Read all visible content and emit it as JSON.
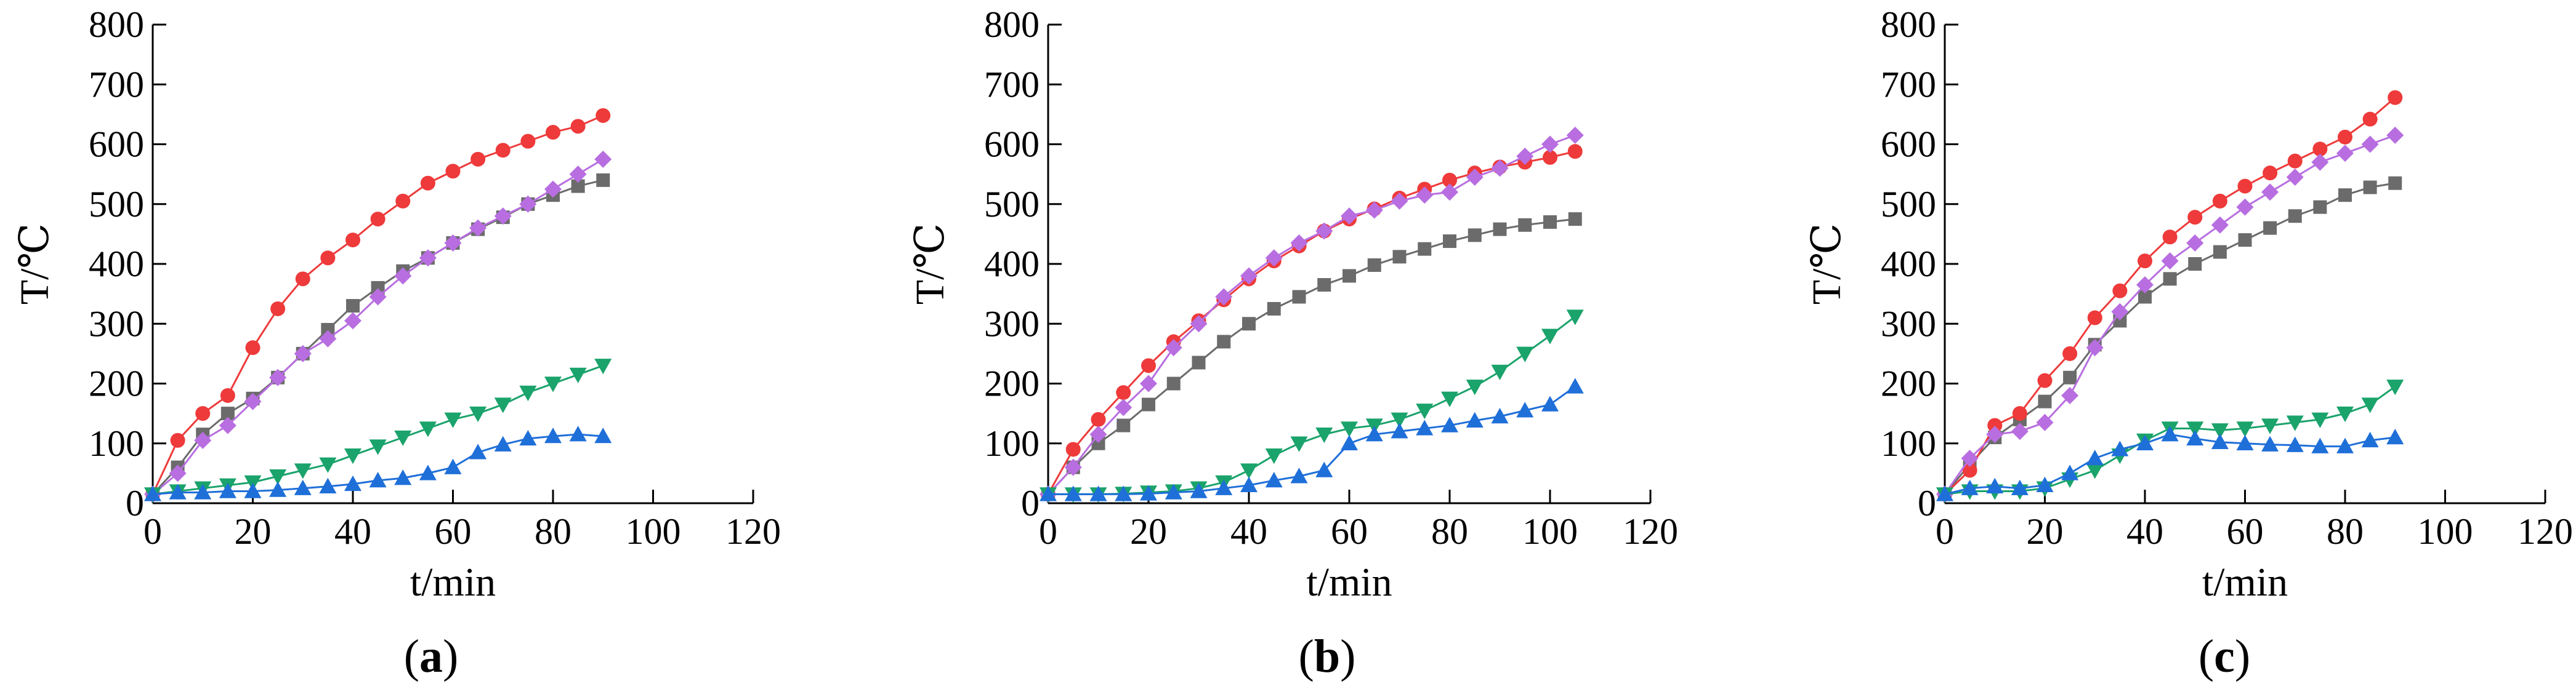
{
  "chart_data": [
    {
      "type": "line",
      "panel_label": "a",
      "xlabel": "t/min",
      "ylabel": "T/℃",
      "xlim": [
        0,
        120
      ],
      "ylim": [
        0,
        800
      ],
      "xticks": [
        "0",
        "20",
        "40",
        "60",
        "80",
        "100",
        "120"
      ],
      "yticks": [
        "0",
        "100",
        "200",
        "300",
        "400",
        "500",
        "600",
        "700",
        "800"
      ],
      "series": [
        {
          "marker": "square",
          "color": "#6b6b6b",
          "x": [
            0,
            5,
            10,
            15,
            20,
            25,
            30,
            35,
            40,
            45,
            50,
            55,
            60,
            65,
            70,
            75,
            80,
            85,
            90
          ],
          "y": [
            15,
            60,
            115,
            150,
            175,
            210,
            250,
            290,
            330,
            360,
            388,
            410,
            435,
            458,
            478,
            500,
            515,
            530,
            540
          ]
        },
        {
          "marker": "circle",
          "color": "#ee3a3a",
          "x": [
            0,
            5,
            10,
            15,
            20,
            25,
            30,
            35,
            40,
            45,
            50,
            55,
            60,
            65,
            70,
            75,
            80,
            85,
            90
          ],
          "y": [
            15,
            105,
            150,
            180,
            260,
            325,
            375,
            410,
            440,
            475,
            505,
            535,
            555,
            575,
            590,
            605,
            620,
            630,
            648
          ]
        },
        {
          "marker": "diamond",
          "color": "#b86ee0",
          "x": [
            0,
            5,
            10,
            15,
            20,
            25,
            30,
            35,
            40,
            45,
            50,
            55,
            60,
            65,
            70,
            75,
            80,
            85,
            90
          ],
          "y": [
            15,
            50,
            105,
            130,
            170,
            210,
            250,
            275,
            305,
            345,
            380,
            410,
            435,
            460,
            480,
            500,
            525,
            550,
            575
          ]
        },
        {
          "marker": "triangle-down",
          "color": "#1aa36b",
          "x": [
            0,
            5,
            10,
            15,
            20,
            25,
            30,
            35,
            40,
            45,
            50,
            55,
            60,
            65,
            70,
            75,
            80,
            85,
            90
          ],
          "y": [
            15,
            20,
            25,
            30,
            35,
            45,
            55,
            65,
            80,
            95,
            110,
            125,
            140,
            150,
            165,
            185,
            200,
            215,
            230
          ]
        },
        {
          "marker": "triangle-up",
          "color": "#1f6fd9",
          "x": [
            0,
            5,
            10,
            15,
            20,
            25,
            30,
            35,
            40,
            45,
            50,
            55,
            60,
            65,
            70,
            75,
            80,
            85,
            90
          ],
          "y": [
            15,
            18,
            18,
            20,
            20,
            22,
            25,
            28,
            32,
            38,
            42,
            50,
            60,
            85,
            98,
            108,
            112,
            115,
            112
          ]
        }
      ]
    },
    {
      "type": "line",
      "panel_label": "b",
      "xlabel": "t/min",
      "ylabel": "T/℃",
      "xlim": [
        0,
        120
      ],
      "ylim": [
        0,
        800
      ],
      "xticks": [
        "0",
        "20",
        "40",
        "60",
        "80",
        "100",
        "120"
      ],
      "yticks": [
        "0",
        "100",
        "200",
        "300",
        "400",
        "500",
        "600",
        "700",
        "800"
      ],
      "series": [
        {
          "marker": "square",
          "color": "#6b6b6b",
          "x": [
            0,
            5,
            10,
            15,
            20,
            25,
            30,
            35,
            40,
            45,
            50,
            55,
            60,
            65,
            70,
            75,
            80,
            85,
            90,
            95,
            100,
            105
          ],
          "y": [
            15,
            60,
            100,
            130,
            165,
            200,
            235,
            270,
            300,
            325,
            345,
            365,
            380,
            398,
            412,
            425,
            438,
            448,
            458,
            465,
            470,
            475
          ]
        },
        {
          "marker": "circle",
          "color": "#ee3a3a",
          "x": [
            0,
            5,
            10,
            15,
            20,
            25,
            30,
            35,
            40,
            45,
            50,
            55,
            60,
            65,
            70,
            75,
            80,
            85,
            90,
            95,
            100,
            105
          ],
          "y": [
            15,
            90,
            140,
            185,
            230,
            270,
            305,
            340,
            375,
            405,
            430,
            455,
            475,
            492,
            510,
            525,
            540,
            552,
            562,
            570,
            578,
            588
          ]
        },
        {
          "marker": "diamond",
          "color": "#b86ee0",
          "x": [
            0,
            5,
            10,
            15,
            20,
            25,
            30,
            35,
            40,
            45,
            50,
            55,
            60,
            65,
            70,
            75,
            80,
            85,
            90,
            95,
            100,
            105
          ],
          "y": [
            15,
            60,
            115,
            160,
            200,
            260,
            300,
            345,
            380,
            410,
            435,
            455,
            480,
            490,
            505,
            515,
            520,
            545,
            560,
            580,
            600,
            615
          ]
        },
        {
          "marker": "triangle-down",
          "color": "#1aa36b",
          "x": [
            0,
            5,
            10,
            15,
            20,
            25,
            30,
            35,
            40,
            45,
            50,
            55,
            60,
            65,
            70,
            75,
            80,
            85,
            90,
            95,
            100,
            105
          ],
          "y": [
            15,
            15,
            15,
            16,
            18,
            20,
            25,
            35,
            55,
            80,
            100,
            115,
            125,
            130,
            140,
            155,
            175,
            195,
            220,
            250,
            280,
            312
          ]
        },
        {
          "marker": "triangle-up",
          "color": "#1f6fd9",
          "x": [
            0,
            5,
            10,
            15,
            20,
            25,
            30,
            35,
            40,
            45,
            50,
            55,
            60,
            65,
            70,
            75,
            80,
            85,
            90,
            95,
            100,
            105
          ],
          "y": [
            15,
            15,
            15,
            15,
            16,
            18,
            20,
            25,
            30,
            38,
            45,
            55,
            100,
            115,
            120,
            125,
            130,
            138,
            145,
            155,
            165,
            195
          ]
        }
      ]
    },
    {
      "type": "line",
      "panel_label": "c",
      "xlabel": "t/min",
      "ylabel": "T/℃",
      "xlim": [
        0,
        120
      ],
      "ylim": [
        0,
        800
      ],
      "xticks": [
        "0",
        "20",
        "40",
        "60",
        "80",
        "100",
        "120"
      ],
      "yticks": [
        "0",
        "100",
        "200",
        "300",
        "400",
        "500",
        "600",
        "700",
        "800"
      ],
      "series": [
        {
          "marker": "square",
          "color": "#6b6b6b",
          "x": [
            0,
            5,
            10,
            15,
            20,
            25,
            30,
            35,
            40,
            45,
            50,
            55,
            60,
            65,
            70,
            75,
            80,
            85,
            90
          ],
          "y": [
            15,
            65,
            110,
            140,
            170,
            210,
            265,
            305,
            345,
            375,
            400,
            420,
            440,
            460,
            480,
            495,
            515,
            528,
            535
          ]
        },
        {
          "marker": "circle",
          "color": "#ee3a3a",
          "x": [
            0,
            5,
            10,
            15,
            20,
            25,
            30,
            35,
            40,
            45,
            50,
            55,
            60,
            65,
            70,
            75,
            80,
            85,
            90
          ],
          "y": [
            15,
            55,
            130,
            150,
            205,
            250,
            310,
            355,
            405,
            445,
            478,
            505,
            530,
            552,
            572,
            592,
            612,
            642,
            678
          ]
        },
        {
          "marker": "diamond",
          "color": "#b86ee0",
          "x": [
            0,
            5,
            10,
            15,
            20,
            25,
            30,
            35,
            40,
            45,
            50,
            55,
            60,
            65,
            70,
            75,
            80,
            85,
            90
          ],
          "y": [
            15,
            75,
            115,
            120,
            135,
            180,
            260,
            320,
            365,
            405,
            435,
            465,
            495,
            520,
            545,
            570,
            585,
            600,
            615
          ]
        },
        {
          "marker": "triangle-down",
          "color": "#1aa36b",
          "x": [
            0,
            5,
            10,
            15,
            20,
            25,
            30,
            35,
            40,
            45,
            50,
            55,
            60,
            65,
            70,
            75,
            80,
            85,
            90
          ],
          "y": [
            15,
            20,
            20,
            20,
            25,
            40,
            55,
            80,
            105,
            125,
            125,
            122,
            125,
            130,
            135,
            140,
            150,
            165,
            195
          ]
        },
        {
          "marker": "triangle-up",
          "color": "#1f6fd9",
          "x": [
            0,
            5,
            10,
            15,
            20,
            25,
            30,
            35,
            40,
            45,
            50,
            55,
            60,
            65,
            70,
            75,
            80,
            85,
            90
          ],
          "y": [
            15,
            25,
            28,
            25,
            30,
            50,
            75,
            90,
            100,
            115,
            108,
            102,
            100,
            98,
            97,
            95,
            95,
            105,
            110
          ]
        }
      ]
    }
  ]
}
